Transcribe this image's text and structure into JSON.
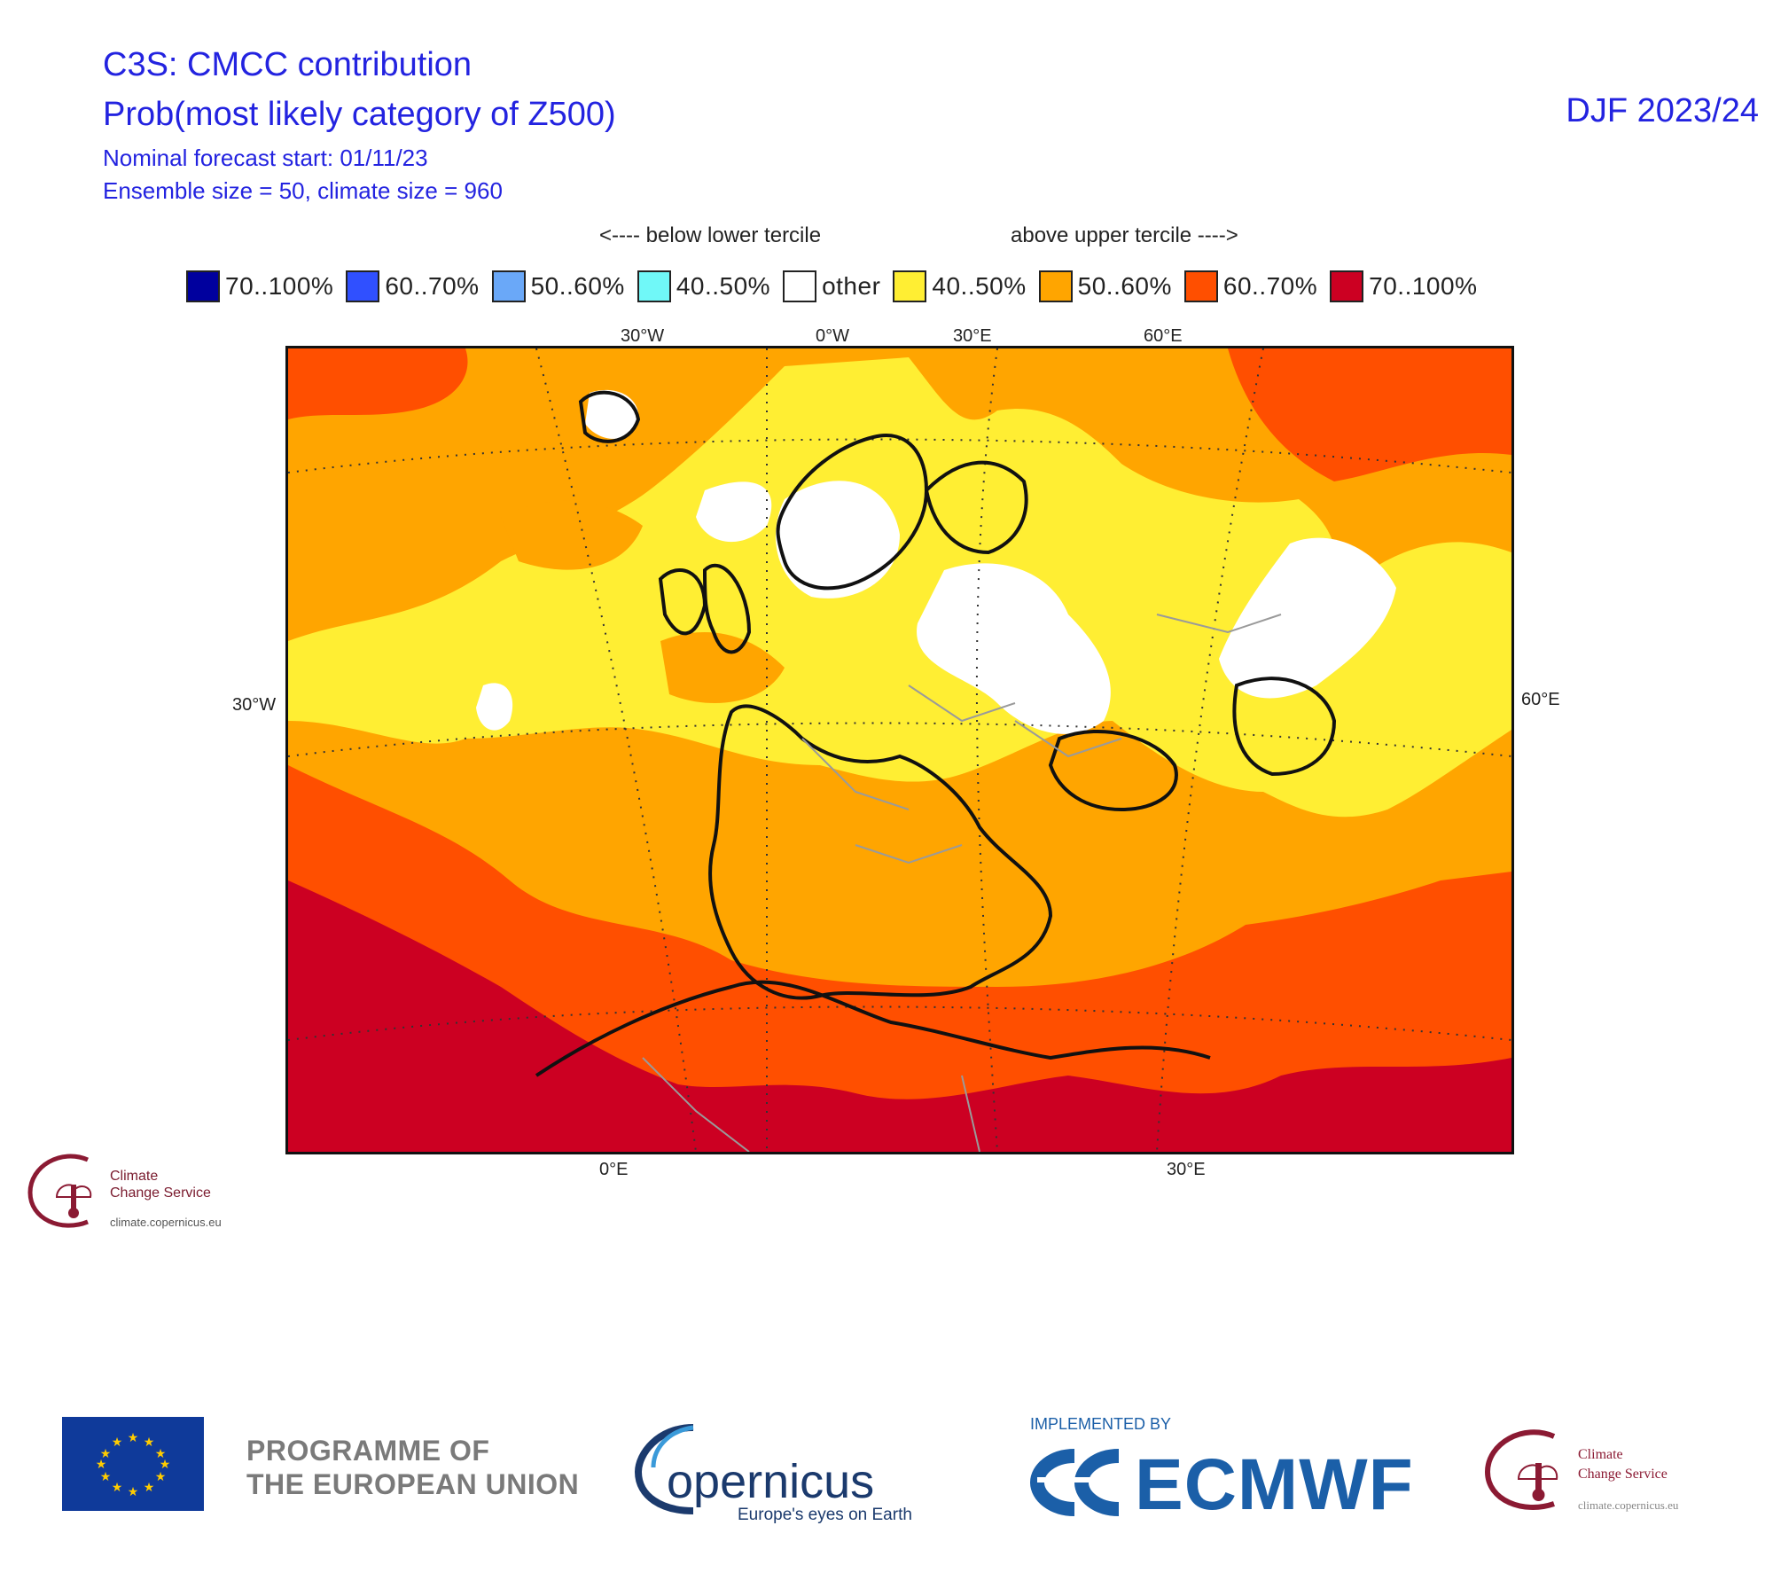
{
  "header": {
    "title_line1": "C3S: CMCC contribution",
    "title_line2": "Prob(most likely category of Z500)",
    "forecast_start": "Nominal forecast start: 01/11/23",
    "ensemble_info": "Ensemble size = 50, climate size = 960",
    "season": "DJF 2023/24"
  },
  "legend": {
    "below_label": "<---- below lower tercile",
    "above_label": "above upper tercile ---->",
    "items": [
      {
        "label": "70..100%",
        "color": "#00009e"
      },
      {
        "label": "60..70%",
        "color": "#3050ff"
      },
      {
        "label": "50..60%",
        "color": "#6aa8f8"
      },
      {
        "label": "40..50%",
        "color": "#70f8f8"
      },
      {
        "label": "other",
        "color": "#ffffff"
      },
      {
        "label": "40..50%",
        "color": "#ffee33"
      },
      {
        "label": "50..60%",
        "color": "#ffa500"
      },
      {
        "label": "60..70%",
        "color": "#ff4f00"
      },
      {
        "label": "70..100%",
        "color": "#cc0022"
      }
    ]
  },
  "map": {
    "top_labels": [
      "30°W",
      "0°W",
      "30°E",
      "60°E"
    ],
    "bottom_labels": [
      "0°E",
      "30°E"
    ],
    "left_label": "30°W",
    "right_label": "60°E"
  },
  "footer": {
    "programme_line1": "PROGRAMME OF",
    "programme_line2": "THE EUROPEAN UNION",
    "copernicus_name": "opernicus",
    "copernicus_tagline": "Europe's eyes on Earth",
    "implemented_by": "IMPLEMENTED BY",
    "ecmwf": "ECMWF",
    "c3s_line1": "Climate",
    "c3s_line2": "Change Service",
    "c3s_url": "climate.copernicus.eu"
  }
}
